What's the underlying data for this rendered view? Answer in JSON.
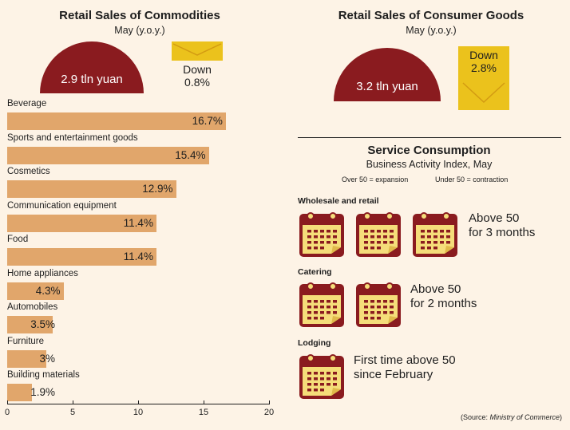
{
  "left": {
    "title": "Retail Sales of Commodities",
    "subtitle": "May (y.o.y.)",
    "total": "2.9 tln yuan",
    "change": {
      "direction": "Down",
      "value": "0.8%"
    }
  },
  "right": {
    "title": "Retail Sales of Consumer Goods",
    "subtitle": "May (y.o.y.)",
    "total": "3.2 tln yuan",
    "change": {
      "direction": "Down",
      "value": "2.8%"
    }
  },
  "service": {
    "title": "Service Consumption",
    "subtitle": "Business Activity Index, May",
    "legend_expansion": "Over 50 = expansion",
    "legend_contraction": "Under 50 = contraction",
    "rows": [
      {
        "label": "Wholesale and retail",
        "status_line1": "Above 50",
        "status_line2": "for 3 months",
        "months": 3
      },
      {
        "label": "Catering",
        "status_line1": "Above 50",
        "status_line2": "for 2 months",
        "months": 2
      },
      {
        "label": "Lodging",
        "status_line1": "First time above 50",
        "status_line2": "since February",
        "months": 1
      }
    ]
  },
  "source": {
    "prefix": "(Source: ",
    "name": "Ministry of Commerce",
    "suffix": ")"
  },
  "colors": {
    "maroon": "#8a1b1f",
    "bar": "#e1a66b",
    "envelope": "#ebc21c",
    "calendar_page": "#f5dd7a",
    "background": "#fdf3e6"
  },
  "chart_data": {
    "type": "bar",
    "orientation": "horizontal",
    "categories": [
      "Beverage",
      "Sports and entertainment goods",
      "Cosmetics",
      "Communication equipment",
      "Food",
      "Home appliances",
      "Automobiles",
      "Furniture",
      "Building materials"
    ],
    "values": [
      16.7,
      15.4,
      12.9,
      11.4,
      11.4,
      4.3,
      3.5,
      3,
      1.9
    ],
    "value_labels": [
      "16.7%",
      "15.4%",
      "12.9%",
      "11.4%",
      "11.4%",
      "4.3%",
      "3.5%",
      "3%",
      "1.9%"
    ],
    "xlim": [
      0,
      20
    ],
    "xticks": [
      0,
      5,
      10,
      15,
      20
    ],
    "xtick_labels": [
      "0",
      "5",
      "10",
      "15",
      "20"
    ]
  }
}
